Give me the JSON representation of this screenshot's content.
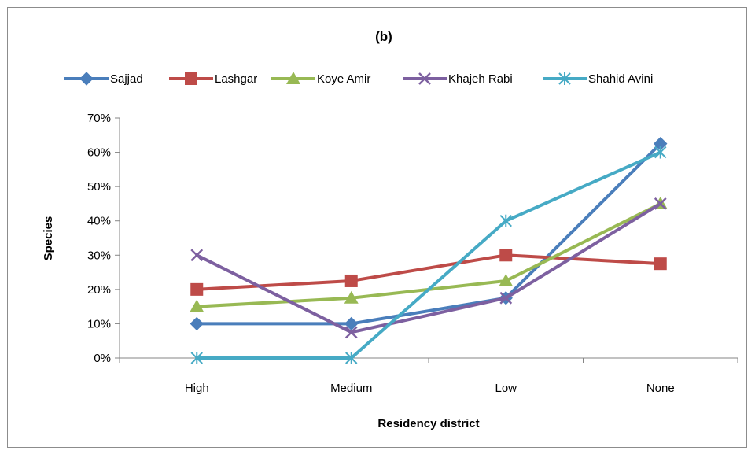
{
  "chart_data": {
    "type": "line",
    "title": "(b)",
    "xlabel": "Residency district",
    "ylabel": "Species",
    "categories": [
      "High",
      "Medium",
      "Low",
      "None"
    ],
    "ylim": [
      0,
      70
    ],
    "yticks": [
      0,
      10,
      20,
      30,
      40,
      50,
      60,
      70
    ],
    "ytick_labels": [
      "0%",
      "10%",
      "20%",
      "30%",
      "40%",
      "50%",
      "60%",
      "70%"
    ],
    "y_unit": "%",
    "grid": false,
    "legend_position": "top",
    "series": [
      {
        "name": "Sajjad",
        "color": "#4a7ebb",
        "marker": "diamond",
        "values": [
          10,
          10,
          17.5,
          62.5
        ]
      },
      {
        "name": "Lashgar",
        "color": "#be4b48",
        "marker": "square",
        "values": [
          20,
          22.5,
          30,
          27.5
        ]
      },
      {
        "name": "Koye Amir",
        "color": "#98b954",
        "marker": "triangle",
        "values": [
          15,
          17.5,
          22.5,
          45
        ]
      },
      {
        "name": "Khajeh Rabi",
        "color": "#7d60a0",
        "marker": "x",
        "values": [
          30,
          7.5,
          17.5,
          45
        ]
      },
      {
        "name": "Shahid Avini",
        "color": "#46aac5",
        "marker": "asterisk",
        "values": [
          0,
          0,
          40,
          60
        ]
      }
    ]
  }
}
